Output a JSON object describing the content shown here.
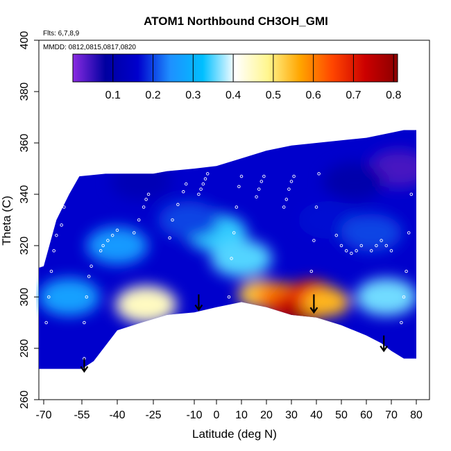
{
  "chart_data": {
    "type": "heatmap",
    "title": "ATOM1 Northbound CH3OH_GMI",
    "xlabel": "Latitude (deg N)",
    "ylabel": "Theta (C)",
    "xlim": [
      -70,
      80
    ],
    "ylim": [
      260,
      400
    ],
    "x_ticks": [
      -70,
      -55,
      -40,
      -25,
      -10,
      0,
      10,
      20,
      30,
      40,
      50,
      60,
      70,
      80
    ],
    "x_tick_labels": [
      "-70",
      "-55",
      "-40",
      "-25",
      "-10",
      "0",
      "10",
      "20",
      "30",
      "40",
      "50",
      "60",
      "70",
      "80"
    ],
    "y_ticks": [
      260,
      280,
      300,
      320,
      340,
      360,
      380,
      400
    ],
    "y_tick_labels": [
      "260",
      "280",
      "300",
      "320",
      "340",
      "360",
      "380",
      "400"
    ],
    "annotations": {
      "flights": "Flts: 6,7,8,9",
      "dates": "MMDD: 0812,0815,0817,0820"
    },
    "colorbar": {
      "range": [
        0.0,
        0.81
      ],
      "ticks": [
        0.1,
        0.2,
        0.3,
        0.4,
        0.5,
        0.6,
        0.7,
        0.8
      ],
      "tick_labels": [
        "0.1",
        "0.2",
        "0.3",
        "0.4",
        "0.5",
        "0.6",
        "0.7",
        "0.8"
      ],
      "colors": [
        "#8a2be2",
        "#0000a0",
        "#0000cd",
        "#1e90ff",
        "#00bfff",
        "#ffffff",
        "#fff68f",
        "#ffa500",
        "#ff4500",
        "#cc0000",
        "#8b0000"
      ]
    },
    "lower_boundary": [
      [
        -73,
        272
      ],
      [
        -55,
        272
      ],
      [
        -50,
        275
      ],
      [
        -40,
        287
      ],
      [
        -30,
        290
      ],
      [
        -20,
        293
      ],
      [
        -10,
        294
      ],
      [
        0,
        296
      ],
      [
        10,
        298
      ],
      [
        20,
        296
      ],
      [
        30,
        293
      ],
      [
        40,
        292
      ],
      [
        50,
        289
      ],
      [
        60,
        285
      ],
      [
        66,
        282
      ],
      [
        70,
        279
      ],
      [
        75,
        276
      ],
      [
        80,
        276
      ]
    ],
    "upper_boundary": [
      [
        -73,
        311
      ],
      [
        -70,
        312
      ],
      [
        -65,
        330
      ],
      [
        -60,
        340
      ],
      [
        -56,
        347
      ],
      [
        -45,
        348
      ],
      [
        -25,
        348
      ],
      [
        -20,
        349
      ],
      [
        -10,
        350
      ],
      [
        0,
        351
      ],
      [
        10,
        354
      ],
      [
        20,
        357
      ],
      [
        30,
        359
      ],
      [
        40,
        360
      ],
      [
        50,
        361
      ],
      [
        60,
        362
      ],
      [
        70,
        364
      ],
      [
        75,
        365
      ],
      [
        80,
        365
      ]
    ],
    "field_features": [
      {
        "lat": -28,
        "theta": 297,
        "value": 0.45
      },
      {
        "lat": 0,
        "theta": 325,
        "value": 0.34
      },
      {
        "lat": 10,
        "theta": 315,
        "value": 0.35
      },
      {
        "lat": 18,
        "theta": 301,
        "value": 0.53
      },
      {
        "lat": 25,
        "theta": 300,
        "value": 0.6
      },
      {
        "lat": 30,
        "theta": 296,
        "value": 0.7
      },
      {
        "lat": 35,
        "theta": 295,
        "value": 0.78
      },
      {
        "lat": 38,
        "theta": 301,
        "value": 0.68
      },
      {
        "lat": 44,
        "theta": 298,
        "value": 0.55
      },
      {
        "lat": -60,
        "theta": 300,
        "value": 0.27
      },
      {
        "lat": -40,
        "theta": 320,
        "value": 0.26
      },
      {
        "lat": 68,
        "theta": 300,
        "value": 0.36
      },
      {
        "lat": 73,
        "theta": 350,
        "value": 0.04
      },
      {
        "lat": 55,
        "theta": 345,
        "value": 0.1
      },
      {
        "lat": -30,
        "theta": 345,
        "value": 0.12
      },
      {
        "lat": -12,
        "theta": 330,
        "value": 0.2
      },
      {
        "lat": 45,
        "theta": 330,
        "value": 0.17
      },
      {
        "lat": 62,
        "theta": 325,
        "value": 0.2
      }
    ],
    "flight_tracks": [
      {
        "lat": [
          -69,
          -68,
          -67,
          -66,
          -65,
          -63,
          -62
        ],
        "theta": [
          290,
          300,
          310,
          318,
          324,
          328,
          335
        ]
      },
      {
        "lat": [
          -54,
          -54,
          -53,
          -52,
          -51
        ],
        "theta": [
          276,
          290,
          300,
          308,
          312
        ]
      },
      {
        "lat": [
          -47,
          -46,
          -44,
          -42,
          -40
        ],
        "theta": [
          318,
          320,
          322,
          324,
          326
        ]
      },
      {
        "lat": [
          -33,
          -31,
          -29,
          -28,
          -27
        ],
        "theta": [
          325,
          330,
          335,
          338,
          340
        ]
      },
      {
        "lat": [
          -19,
          -18,
          -16,
          -14,
          -13
        ],
        "theta": [
          323,
          330,
          336,
          341,
          344
        ]
      },
      {
        "lat": [
          -8,
          -7,
          -6,
          -5,
          -4
        ],
        "theta": [
          340,
          342,
          344,
          346,
          348
        ]
      },
      {
        "lat": [
          5,
          6,
          7,
          8,
          9,
          10
        ],
        "theta": [
          300,
          315,
          325,
          335,
          343,
          347
        ]
      },
      {
        "lat": [
          16,
          17,
          18,
          19
        ],
        "theta": [
          339,
          342,
          345,
          347
        ]
      },
      {
        "lat": [
          27,
          28,
          29,
          30,
          31
        ],
        "theta": [
          335,
          338,
          342,
          345,
          347
        ]
      },
      {
        "lat": [
          38,
          39,
          40,
          41
        ],
        "theta": [
          310,
          322,
          335,
          348
        ]
      },
      {
        "lat": [
          48,
          50,
          52,
          54,
          56,
          58
        ],
        "theta": [
          324,
          320,
          318,
          317,
          318,
          320
        ]
      },
      {
        "lat": [
          62,
          64,
          66,
          68,
          70
        ],
        "theta": [
          318,
          320,
          322,
          320,
          318
        ]
      },
      {
        "lat": [
          74,
          75,
          76,
          77,
          78
        ],
        "theta": [
          290,
          300,
          310,
          325,
          340
        ]
      }
    ],
    "arrows": [
      {
        "lat": -54,
        "theta_top": 276,
        "theta_tip": 271
      },
      {
        "lat": -8,
        "theta_top": 301,
        "theta_tip": 295
      },
      {
        "lat": 39,
        "theta_top": 301,
        "theta_tip": 294
      },
      {
        "lat": 67,
        "theta_top": 285,
        "theta_tip": 279
      }
    ]
  }
}
